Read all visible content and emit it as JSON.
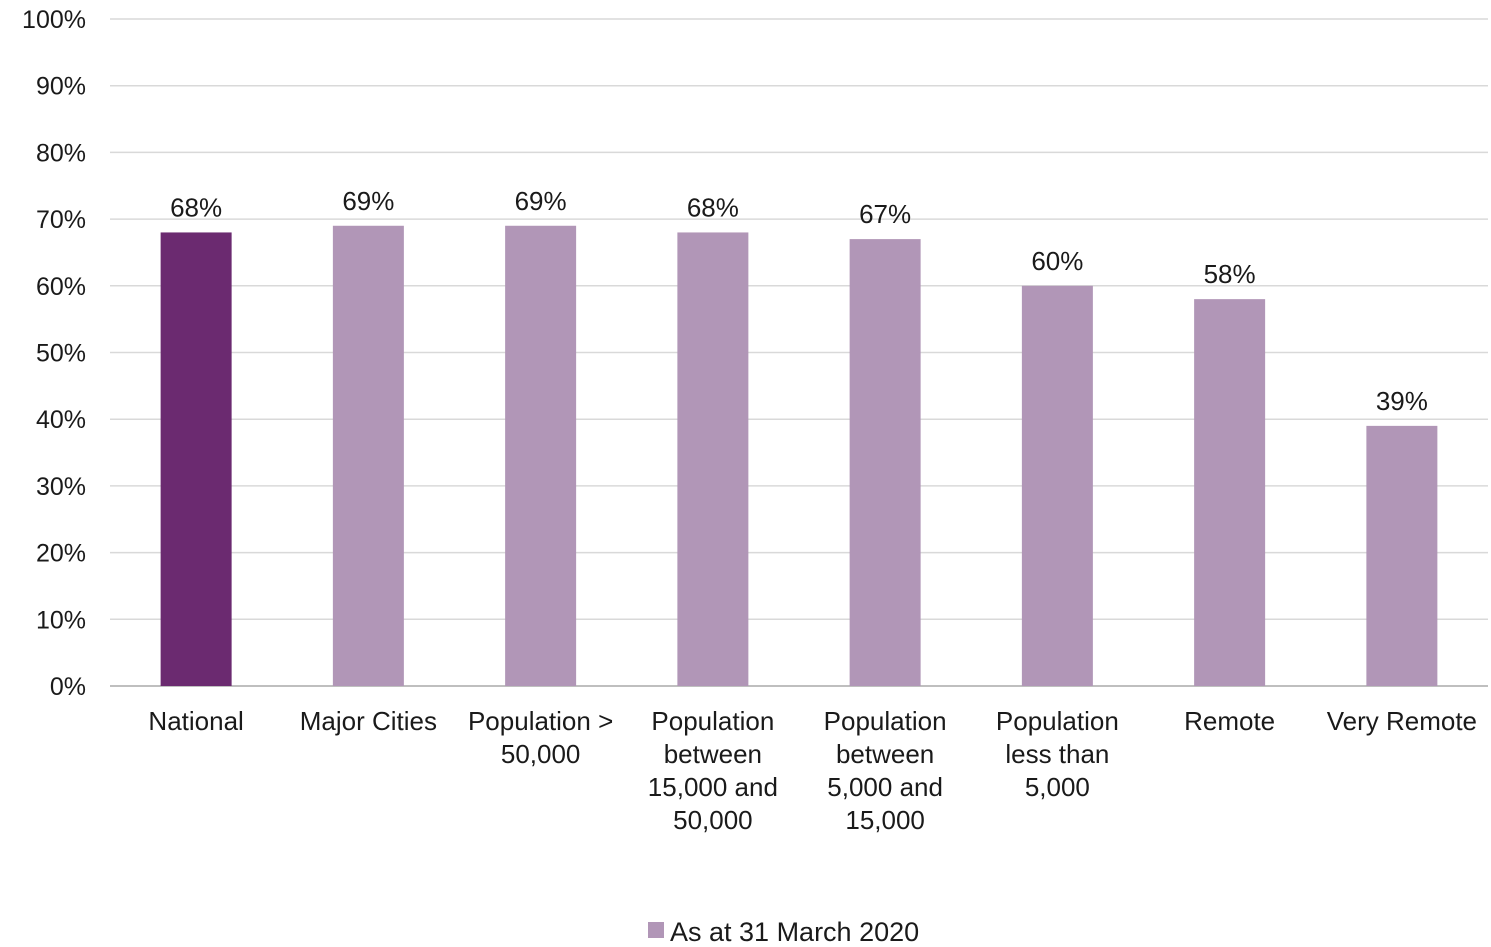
{
  "chart_data": {
    "type": "bar",
    "categories": [
      [
        "National"
      ],
      [
        "Major Cities"
      ],
      [
        "Population >",
        "50,000"
      ],
      [
        "Population",
        "between",
        "15,000 and",
        "50,000"
      ],
      [
        "Population",
        "between",
        "5,000 and",
        "15,000"
      ],
      [
        "Population",
        "less than",
        "5,000"
      ],
      [
        "Remote"
      ],
      [
        "Very Remote"
      ]
    ],
    "series": [
      {
        "name": "As at 31 March 2020",
        "values": [
          68,
          69,
          69,
          68,
          67,
          60,
          58,
          39
        ],
        "data_labels": [
          "68%",
          "69%",
          "69%",
          "68%",
          "67%",
          "60%",
          "58%",
          "39%"
        ]
      }
    ],
    "highlight_index": 0,
    "colors": {
      "highlight": "#6B2A70",
      "bar": "#B196B7",
      "grid": "#d9d9d9",
      "axis": "#bfbfbf"
    },
    "ylim": [
      0,
      100
    ],
    "yticks": [
      0,
      10,
      20,
      30,
      40,
      50,
      60,
      70,
      80,
      90,
      100
    ],
    "ytick_labels": [
      "0%",
      "10%",
      "20%",
      "30%",
      "40%",
      "50%",
      "60%",
      "70%",
      "80%",
      "90%",
      "100%"
    ],
    "grid": true,
    "legend": {
      "position": "bottom",
      "label": "As at 31 March 2020"
    }
  }
}
